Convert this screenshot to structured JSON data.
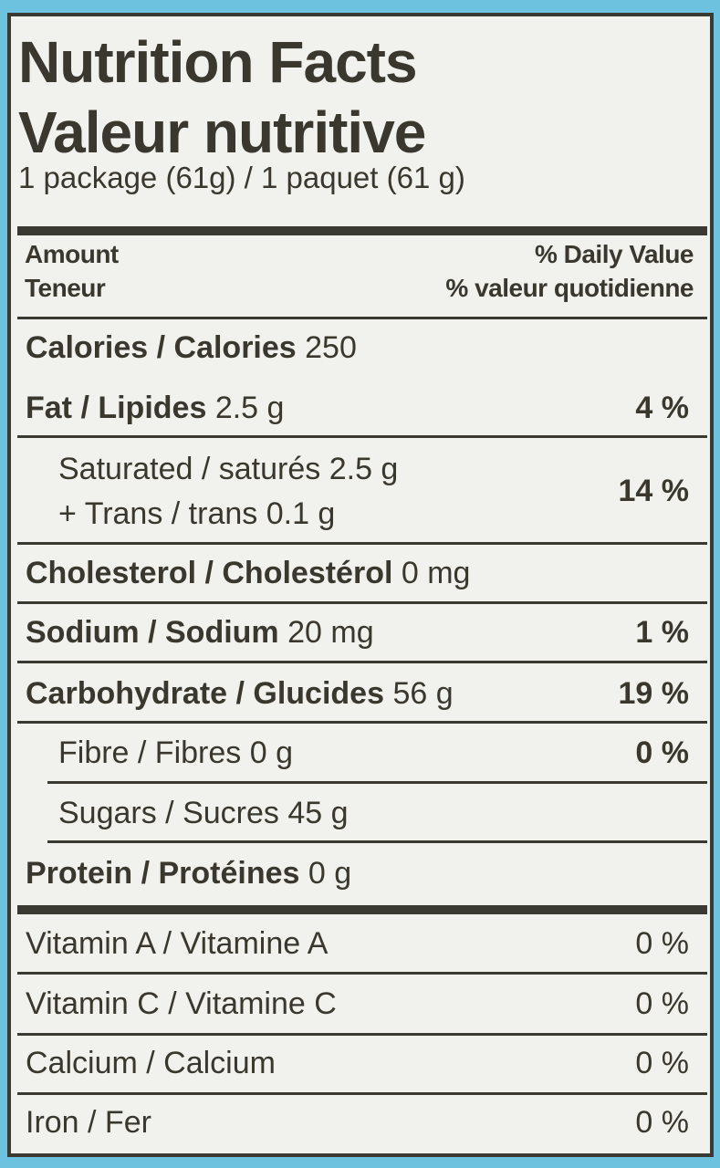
{
  "title_en": "Nutrition Facts",
  "title_fr": "Valeur nutritive",
  "serving": "1 package (61g)  / 1 paquet (61 g)",
  "header": {
    "amount_en": "Amount",
    "amount_fr": "Teneur",
    "dv_en": "% Daily Value",
    "dv_fr": "% valeur quotidienne"
  },
  "nutrients": [
    {
      "label": "Calories / Calories",
      "amount": "250",
      "dv": ""
    },
    {
      "label": "Fat / Lipides",
      "amount": "2.5 g",
      "dv": "4 %"
    },
    {
      "label": "Saturated / saturés 2.5 g",
      "amount": "",
      "dv": "14 %"
    },
    {
      "label": "+ Trans / trans 0.1 g",
      "amount": "",
      "dv": ""
    },
    {
      "label": "Cholesterol / Cholestérol",
      "amount": "0 mg",
      "dv": ""
    },
    {
      "label": "Sodium / Sodium",
      "amount": "20 mg",
      "dv": "1 %"
    },
    {
      "label": "Carbohydrate / Glucides",
      "amount": "56 g",
      "dv": "19 %"
    },
    {
      "label": "Fibre / Fibres 0 g",
      "amount": "",
      "dv": "0 %"
    },
    {
      "label": "Sugars / Sucres 45 g",
      "amount": "",
      "dv": ""
    },
    {
      "label": "Protein / Protéines",
      "amount": "0 g",
      "dv": ""
    }
  ],
  "vitamins": [
    {
      "label": "Vitamin A / Vitamine A",
      "dv": "0 %"
    },
    {
      "label": "Vitamin C / Vitamine C",
      "dv": "0 %"
    },
    {
      "label": "Calcium / Calcium",
      "dv": "0 %"
    },
    {
      "label": "Iron / Fer",
      "dv": "0 %"
    }
  ],
  "colors": {
    "background": "#6cc2df",
    "label": "#f1f2ee",
    "ink": "#3a382e"
  }
}
